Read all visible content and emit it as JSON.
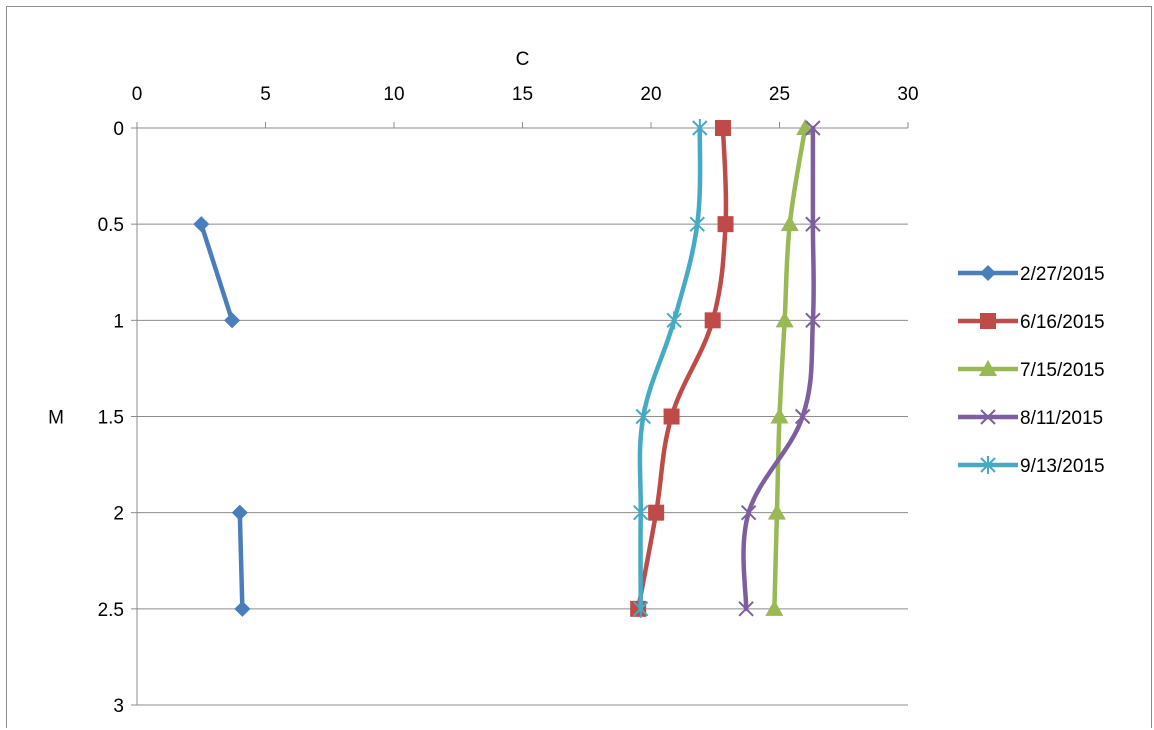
{
  "chart_data": {
    "type": "line",
    "xlabel": "C",
    "ylabel": "M",
    "xlim": [
      0,
      30
    ],
    "ylim": [
      0,
      3
    ],
    "y_inverted": true,
    "x_axis_position": "top",
    "x_ticks": [
      "0",
      "5",
      "10",
      "15",
      "20",
      "25",
      "30"
    ],
    "y_ticks": [
      "0",
      "0.5",
      "1",
      "1.5",
      "2",
      "2.5",
      "3"
    ],
    "grid": "horizontal",
    "legend_position": "right",
    "series": [
      {
        "name": "2/27/2015",
        "color": "#4a7ebb",
        "marker": "diamond",
        "points": [
          {
            "x": 2.5,
            "y": 0.5
          },
          {
            "x": 3.7,
            "y": 1
          },
          null,
          {
            "x": 4.0,
            "y": 2
          },
          {
            "x": 4.1,
            "y": 2.5
          }
        ]
      },
      {
        "name": "6/16/2015",
        "color": "#be4b48",
        "marker": "square",
        "points": [
          {
            "x": 22.8,
            "y": 0
          },
          {
            "x": 22.9,
            "y": 0.5
          },
          {
            "x": 22.4,
            "y": 1
          },
          {
            "x": 20.8,
            "y": 1.5
          },
          {
            "x": 20.2,
            "y": 2
          },
          {
            "x": 19.5,
            "y": 2.5
          }
        ]
      },
      {
        "name": "7/15/2015",
        "color": "#98b954",
        "marker": "triangle",
        "points": [
          {
            "x": 26.0,
            "y": 0
          },
          {
            "x": 25.4,
            "y": 0.5
          },
          {
            "x": 25.2,
            "y": 1
          },
          {
            "x": 25.0,
            "y": 1.5
          },
          {
            "x": 24.9,
            "y": 2
          },
          {
            "x": 24.8,
            "y": 2.5
          }
        ]
      },
      {
        "name": "8/11/2015",
        "color": "#7d5fa0",
        "marker": "x",
        "points": [
          {
            "x": 26.3,
            "y": 0
          },
          {
            "x": 26.3,
            "y": 0.5
          },
          {
            "x": 26.3,
            "y": 1
          },
          {
            "x": 25.9,
            "y": 1.5
          },
          {
            "x": 23.8,
            "y": 2
          },
          {
            "x": 23.7,
            "y": 2.5
          }
        ]
      },
      {
        "name": "9/13/2015",
        "color": "#46aac5",
        "marker": "star",
        "points": [
          {
            "x": 21.9,
            "y": 0
          },
          {
            "x": 21.8,
            "y": 0.5
          },
          {
            "x": 20.9,
            "y": 1
          },
          {
            "x": 19.7,
            "y": 1.5
          },
          {
            "x": 19.6,
            "y": 2
          },
          {
            "x": 19.6,
            "y": 2.5
          }
        ]
      }
    ]
  }
}
